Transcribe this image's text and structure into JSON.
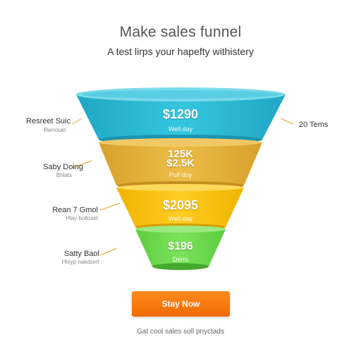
{
  "header": {
    "title": "Make sales funnel",
    "subtitle": "A test lirps your hapefty withistery"
  },
  "funnel": {
    "stages": [
      {
        "value": "$1290",
        "sub": "Well day",
        "left_label": "Resreet Suic",
        "left_sub": "Rerrouel",
        "color": "#29b9d4"
      },
      {
        "value": "125K\n$2.5K",
        "sub": "Pulf doy",
        "left_label": "Saby Doing",
        "left_sub": "Bhlats",
        "color": "#e4b03a"
      },
      {
        "value": "$2095",
        "sub": "Well day",
        "left_label": "Rean 7 Gmol",
        "left_sub": "Hlay bolloset",
        "color": "#f7c21a"
      },
      {
        "value": "$196",
        "sub": "Derrs",
        "left_label": "Satty Baol",
        "left_sub": "Hloyp nakdsert",
        "color": "#6fd94f"
      }
    ],
    "right_label": "20 Tems"
  },
  "cta": {
    "label": "Stay Now"
  },
  "footnote": "Gat cool sales soll pnyctads"
}
